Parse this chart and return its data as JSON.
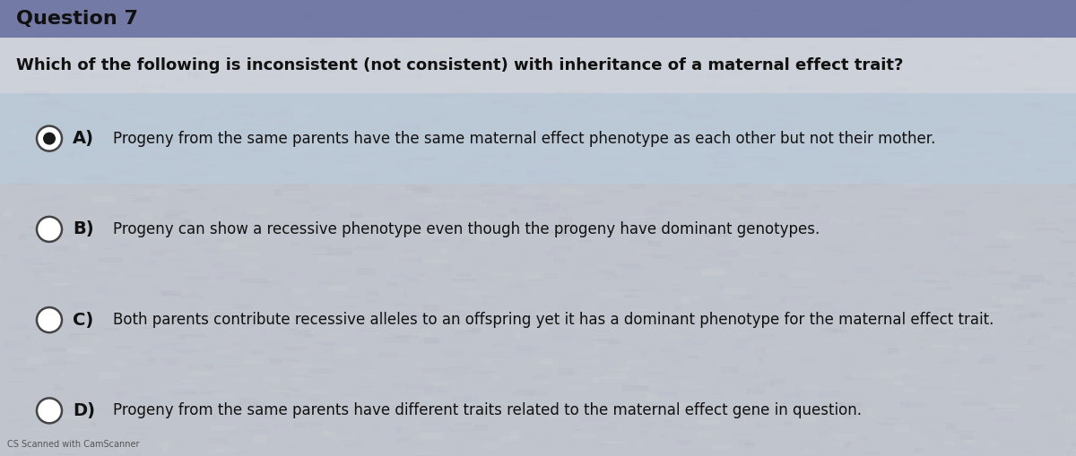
{
  "title": "Question 7",
  "title_bg_color": "#6870a0",
  "title_text_color": "#111111",
  "question": "Which of the following is inconsistent (not consistent) with inheritance of a maternal effect trait?",
  "question_font_size": 13,
  "options": [
    {
      "label": "A)",
      "text": "Progeny from the same parents have the same maternal effect phenotype as each other but not their mother.",
      "selected": true,
      "highlight_bg": "#b8cce0"
    },
    {
      "label": "B)",
      "text": "Progeny can show a recessive phenotype even though the progeny have dominant genotypes.",
      "selected": false,
      "highlight_bg": null
    },
    {
      "label": "C)",
      "text": "Both parents contribute recessive alleles to an offspring yet it has a dominant phenotype for the maternal effect trait.",
      "selected": false,
      "highlight_bg": null
    },
    {
      "label": "D)",
      "text": "Progeny from the same parents have different traits related to the maternal effect gene in question.",
      "selected": false,
      "highlight_bg": null
    }
  ],
  "footer": "CS Scanned with CamScanner",
  "bg_color": "#c0c4cc",
  "option_font_size": 12,
  "label_font_size": 14,
  "fig_width": 12.0,
  "fig_height": 5.09,
  "dpi": 100
}
